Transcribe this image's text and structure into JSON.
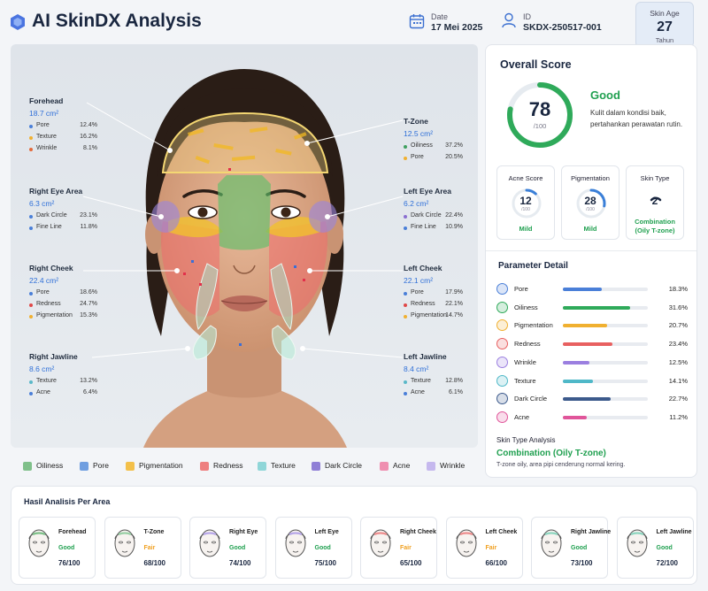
{
  "header": {
    "title": "AI SkinDX Analysis",
    "date_label": "Date",
    "date_value": "17 Mei 2025",
    "id_label": "ID",
    "id_value": "SKDX-250517-001",
    "age_label": "Skin Age",
    "age_value": "27",
    "age_unit": "Tahun"
  },
  "face_areas": [
    {
      "title": "Forehead",
      "area": "18.7 cm²",
      "metrics": [
        {
          "name": "Pore",
          "value": "12.4%",
          "color": "#4a7fd8"
        },
        {
          "name": "Texture",
          "value": "16.2%",
          "color": "#f0b030"
        },
        {
          "name": "Wrinkle",
          "value": "8.1%",
          "color": "#e46a3a"
        }
      ]
    },
    {
      "title": "T-Zone",
      "area": "12.5 cm²",
      "metrics": [
        {
          "name": "Oiliness",
          "value": "37.2%",
          "color": "#3fa060"
        },
        {
          "name": "Pore",
          "value": "20.5%",
          "color": "#f0b030"
        }
      ]
    },
    {
      "title": "Right Eye Area",
      "area": "6.3 cm²",
      "metrics": [
        {
          "name": "Dark Circle",
          "value": "23.1%",
          "color": "#4a7fd8"
        },
        {
          "name": "Fine Line",
          "value": "11.8%",
          "color": "#4a7fd8"
        }
      ]
    },
    {
      "title": "Left Eye Area",
      "area": "6.2 cm²",
      "metrics": [
        {
          "name": "Dark Circle",
          "value": "22.4%",
          "color": "#8a6fd0"
        },
        {
          "name": "Fine Line",
          "value": "10.9%",
          "color": "#4a7fd8"
        }
      ]
    },
    {
      "title": "Right Cheek",
      "area": "22.4 cm²",
      "metrics": [
        {
          "name": "Pore",
          "value": "18.6%",
          "color": "#4a7fd8"
        },
        {
          "name": "Redness",
          "value": "24.7%",
          "color": "#e04848"
        },
        {
          "name": "Pigmentation",
          "value": "15.3%",
          "color": "#f0b030"
        }
      ]
    },
    {
      "title": "Left Cheek",
      "area": "22.1 cm²",
      "metrics": [
        {
          "name": "Pore",
          "value": "17.9%",
          "color": "#4a7fd8"
        },
        {
          "name": "Redness",
          "value": "22.1%",
          "color": "#e04848"
        },
        {
          "name": "Pigmentation",
          "value": "14.7%",
          "color": "#f0b030"
        }
      ]
    },
    {
      "title": "Right Jawline",
      "area": "8.6 cm²",
      "metrics": [
        {
          "name": "Texture",
          "value": "13.2%",
          "color": "#5ab8c8"
        },
        {
          "name": "Acne",
          "value": "6.4%",
          "color": "#4a7fd8"
        }
      ]
    },
    {
      "title": "Left Jawline",
      "area": "8.4 cm²",
      "metrics": [
        {
          "name": "Texture",
          "value": "12.8%",
          "color": "#5ab8c8"
        },
        {
          "name": "Acne",
          "value": "6.1%",
          "color": "#4a7fd8"
        }
      ]
    }
  ],
  "legend": [
    {
      "label": "Oiliness",
      "color": "#7fc08a"
    },
    {
      "label": "Pore",
      "color": "#6f9ee0"
    },
    {
      "label": "Pigmentation",
      "color": "#f3c04a"
    },
    {
      "label": "Redness",
      "color": "#ee7f7f"
    },
    {
      "label": "Texture",
      "color": "#8fd6d8"
    },
    {
      "label": "Dark Circle",
      "color": "#8f7fd6"
    },
    {
      "label": "Acne",
      "color": "#ef8fb0"
    },
    {
      "label": "Wrinkle",
      "color": "#c5b8ee"
    }
  ],
  "overall": {
    "title": "Overall Score",
    "score": "78",
    "score_fraction": 0.78,
    "max": "/100",
    "status": "Good",
    "description": "Kulit dalam kondisi baik, pertahankan perawatan rutin."
  },
  "mini_cards": [
    {
      "title": "Acne Score",
      "value": "12",
      "max": "/100",
      "fraction": 0.12,
      "status": "Mild"
    },
    {
      "title": "Pigmentation",
      "value": "28",
      "max": "/100",
      "fraction": 0.28,
      "status": "Mild"
    },
    {
      "title": "Skin Type",
      "value": "2",
      "status": "Combination (Oily T-zone)"
    }
  ],
  "parameters": {
    "title": "Parameter Detail",
    "items": [
      {
        "name": "Pore",
        "value": "18.3%",
        "fraction": 0.183,
        "color": "#4a7fd8"
      },
      {
        "name": "Oiliness",
        "value": "31.6%",
        "fraction": 0.316,
        "color": "#2faa5a"
      },
      {
        "name": "Pigmentation",
        "value": "20.7%",
        "fraction": 0.207,
        "color": "#f0b030"
      },
      {
        "name": "Redness",
        "value": "23.4%",
        "fraction": 0.234,
        "color": "#e86060"
      },
      {
        "name": "Wrinkle",
        "value": "12.5%",
        "fraction": 0.125,
        "color": "#9b7fe0"
      },
      {
        "name": "Texture",
        "value": "14.1%",
        "fraction": 0.141,
        "color": "#4fb8c8"
      },
      {
        "name": "Dark Circle",
        "value": "22.7%",
        "fraction": 0.227,
        "color": "#3c5a8c"
      },
      {
        "name": "Acne",
        "value": "11.2%",
        "fraction": 0.112,
        "color": "#e0559a"
      }
    ]
  },
  "skin_type_analysis": {
    "title": "Skin Type Analysis",
    "value": "Combination (Oily T-zone)",
    "description": "T-zone oily, area pipi cenderung normal kering."
  },
  "bottom": {
    "title": "Hasil Analisis Per Area",
    "cards": [
      {
        "name": "Forehead",
        "status": "Good",
        "score": "76/100",
        "status_color": "#20a050",
        "zone_color": "#7fc08a"
      },
      {
        "name": "T-Zone",
        "status": "Fair",
        "score": "68/100",
        "status_color": "#f0a020",
        "zone_color": "#9ad0a6"
      },
      {
        "name": "Right Eye",
        "status": "Good",
        "score": "74/100",
        "status_color": "#20a050",
        "zone_color": "#b8a8e8"
      },
      {
        "name": "Left Eye",
        "status": "Good",
        "score": "75/100",
        "status_color": "#20a050",
        "zone_color": "#b8a8e8"
      },
      {
        "name": "Right Cheek",
        "status": "Fair",
        "score": "65/100",
        "status_color": "#f0a020",
        "zone_color": "#ee8f8f"
      },
      {
        "name": "Left Cheek",
        "status": "Fair",
        "score": "66/100",
        "status_color": "#f0a020",
        "zone_color": "#ee8f8f"
      },
      {
        "name": "Right Jawline",
        "status": "Good",
        "score": "73/100",
        "status_color": "#20a050",
        "zone_color": "#8fd6c0"
      },
      {
        "name": "Left Jawline",
        "status": "Good",
        "score": "72/100",
        "status_color": "#20a050",
        "zone_color": "#8fd6c0"
      }
    ]
  }
}
